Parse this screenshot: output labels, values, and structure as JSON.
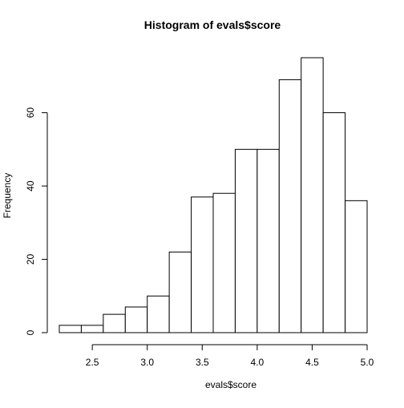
{
  "chart_data": {
    "type": "bar",
    "title": "Histogram of evals$score",
    "xlabel": "evals$score",
    "ylabel": "Frequency",
    "bin_edges": [
      2.2,
      2.4,
      2.6,
      2.8,
      3.0,
      3.2,
      3.4,
      3.6,
      3.8,
      4.0,
      4.2,
      4.4,
      4.6,
      4.8,
      5.0
    ],
    "values": [
      2,
      2,
      5,
      7,
      10,
      22,
      37,
      38,
      50,
      50,
      69,
      75,
      60,
      36
    ],
    "x_ticks": [
      2.5,
      3.0,
      3.5,
      4.0,
      4.5,
      5.0
    ],
    "x_tick_labels": [
      "2.5",
      "3.0",
      "3.5",
      "4.0",
      "4.5",
      "5.0"
    ],
    "y_ticks": [
      0,
      20,
      40,
      60
    ],
    "y_tick_labels": [
      "0",
      "20",
      "40",
      "60"
    ],
    "xlim": [
      2.2,
      5.0
    ],
    "ylim": [
      0,
      75
    ],
    "grid": false,
    "legend": "none"
  }
}
